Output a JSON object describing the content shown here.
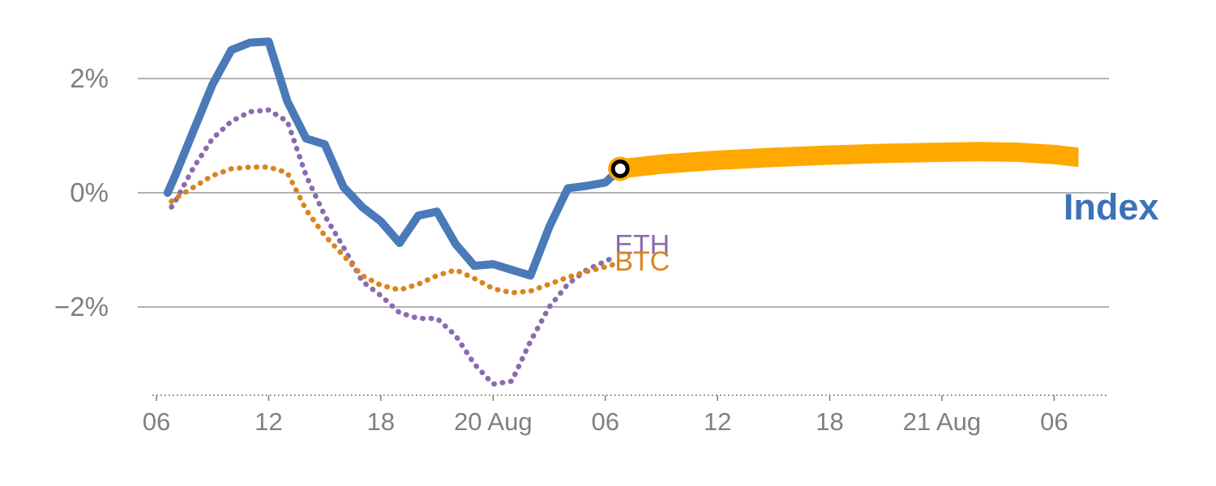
{
  "chart_data": {
    "type": "line",
    "title": "",
    "x_axis": {
      "unit": "hour",
      "ticks": [
        {
          "x": 0,
          "label": "06"
        },
        {
          "x": 6,
          "label": "12"
        },
        {
          "x": 12,
          "label": "18"
        },
        {
          "x": 18,
          "label": "20 Aug"
        },
        {
          "x": 24,
          "label": "06"
        },
        {
          "x": 30,
          "label": "12"
        },
        {
          "x": 36,
          "label": "18"
        },
        {
          "x": 42,
          "label": "21 Aug"
        },
        {
          "x": 48,
          "label": "06"
        }
      ]
    },
    "y_axis": {
      "unit": "percent",
      "ticks": [
        {
          "y": 2,
          "label": "2%"
        },
        {
          "y": 0,
          "label": "0%"
        },
        {
          "y": -2,
          "label": "−2%"
        }
      ]
    },
    "xlim": [
      -1,
      51
    ],
    "ylim": [
      -3.6,
      3.2
    ],
    "grid": "horizontal",
    "colors": {
      "index": "#4a7ab8",
      "eth": "#8a6bb0",
      "btc": "#dd831d",
      "band": "#ffa800",
      "grid": "#999999",
      "axis_text": "#7f7f7f",
      "marker_ring": "#000000",
      "marker_center": "#ffffff"
    },
    "series": [
      {
        "id": "eth",
        "name": "ETH",
        "style": "dotted",
        "color": "#8a6bb0",
        "width": 6.5,
        "x": [
          0.8,
          1,
          2,
          3,
          4,
          5,
          6,
          7,
          8,
          9,
          10,
          11,
          12,
          13,
          14,
          15,
          16,
          17,
          18,
          19,
          20,
          21,
          22,
          23,
          24,
          24.5
        ],
        "y": [
          -0.25,
          -0.15,
          0.45,
          0.95,
          1.25,
          1.42,
          1.45,
          1.25,
          0.3,
          -0.4,
          -0.95,
          -1.55,
          -1.8,
          -2.1,
          -2.2,
          -2.2,
          -2.5,
          -3.0,
          -3.35,
          -3.3,
          -2.6,
          -2.0,
          -1.6,
          -1.35,
          -1.2,
          -1.12
        ]
      },
      {
        "id": "btc",
        "name": "BTC",
        "style": "dotted",
        "color": "#dd831d",
        "width": 6.5,
        "x": [
          0.8,
          1,
          2,
          3,
          4,
          5,
          6,
          7,
          8,
          9,
          10,
          11,
          12,
          13,
          14,
          15,
          16,
          17,
          18,
          19,
          20,
          21,
          22,
          23,
          24,
          24.5
        ],
        "y": [
          -0.15,
          -0.1,
          0.1,
          0.3,
          0.42,
          0.45,
          0.45,
          0.35,
          -0.3,
          -0.75,
          -1.1,
          -1.45,
          -1.62,
          -1.7,
          -1.6,
          -1.45,
          -1.35,
          -1.5,
          -1.68,
          -1.75,
          -1.72,
          -1.6,
          -1.48,
          -1.38,
          -1.3,
          -1.25
        ]
      },
      {
        "id": "index",
        "name": "Index",
        "style": "solid",
        "color": "#4a7ab8",
        "width": 10,
        "x": [
          0.6,
          1,
          2,
          3,
          4,
          5,
          6,
          7,
          8,
          9,
          10,
          11,
          12,
          13,
          14,
          15,
          16,
          17,
          18,
          19,
          20,
          21,
          22,
          23,
          24,
          24.8
        ],
        "y": [
          0.0,
          0.3,
          1.1,
          1.9,
          2.5,
          2.63,
          2.65,
          1.6,
          0.95,
          0.85,
          0.1,
          -0.25,
          -0.5,
          -0.88,
          -0.4,
          -0.33,
          -0.9,
          -1.28,
          -1.25,
          -1.35,
          -1.45,
          -0.6,
          0.08,
          0.12,
          0.18,
          0.42
        ]
      }
    ],
    "forecast_band": {
      "id": "index-forecast",
      "series": "Index",
      "color": "#ffa800",
      "half_width": 0.17,
      "x": [
        24.8,
        27,
        30,
        33,
        36,
        39,
        42,
        44,
        46,
        48,
        49.3
      ],
      "center": [
        0.42,
        0.5,
        0.57,
        0.62,
        0.66,
        0.69,
        0.71,
        0.72,
        0.71,
        0.67,
        0.62
      ]
    },
    "marker": {
      "x": 24.8,
      "y": 0.42,
      "halo_color": "#ffa800",
      "ring_color": "#000000",
      "center_color": "#ffffff"
    },
    "labels": [
      {
        "id": "eth",
        "text": "ETH",
        "x": 24.5,
        "y": -1.07,
        "color": "#8a6bb0",
        "size": 34,
        "bold": false
      },
      {
        "id": "btc",
        "text": "BTC",
        "x": 24.5,
        "y": -1.36,
        "color": "#dd831d",
        "size": 34,
        "bold": false
      },
      {
        "id": "index",
        "text": "Index",
        "x": 48.5,
        "y": -0.47,
        "color": "#3d72b8",
        "size": 45,
        "bold": true
      }
    ]
  }
}
